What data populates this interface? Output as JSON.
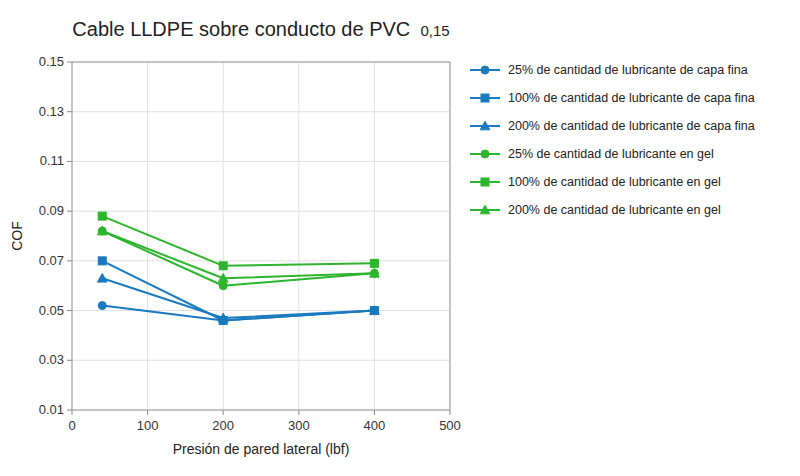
{
  "chart_data": {
    "type": "line",
    "title": "Cable LLDPE sobre conducto de PVC",
    "subtitle": " 0,15",
    "x_label": "Presión de pared lateral (lbf)",
    "y_label": "COF",
    "x": [
      40,
      200,
      400
    ],
    "xlim": [
      0,
      500
    ],
    "ylim": [
      0.01,
      0.15
    ],
    "xticks": [
      0,
      100,
      200,
      300,
      400,
      500
    ],
    "yticks": [
      0.01,
      0.03,
      0.05,
      0.07,
      0.09,
      0.11,
      0.13,
      0.15
    ],
    "grid": true,
    "legend": "right",
    "series": [
      {
        "name": "25% de cantidad de lubricante de capa fina",
        "color": "#1a7abf",
        "marker": "circle",
        "values": [
          0.052,
          0.046,
          0.05
        ]
      },
      {
        "name": "100% de cantidad de lubricante de capa fina",
        "color": "#1a7abf",
        "marker": "square",
        "values": [
          0.07,
          0.046,
          0.05
        ]
      },
      {
        "name": "200% de cantidad de lubricante de capa fina",
        "color": "#1a7abf",
        "marker": "triangle",
        "values": [
          0.063,
          0.047,
          0.05
        ]
      },
      {
        "name": "25% de cantidad de lubricante en gel",
        "color": "#2db52d",
        "marker": "circle",
        "values": [
          0.082,
          0.06,
          0.065
        ]
      },
      {
        "name": "100% de cantidad de lubricante en gel",
        "color": "#2db52d",
        "marker": "square",
        "values": [
          0.088,
          0.068,
          0.069
        ]
      },
      {
        "name": "200% de cantidad de lubricante en gel",
        "color": "#2db52d",
        "marker": "triangle",
        "values": [
          0.082,
          0.063,
          0.065
        ]
      }
    ]
  }
}
